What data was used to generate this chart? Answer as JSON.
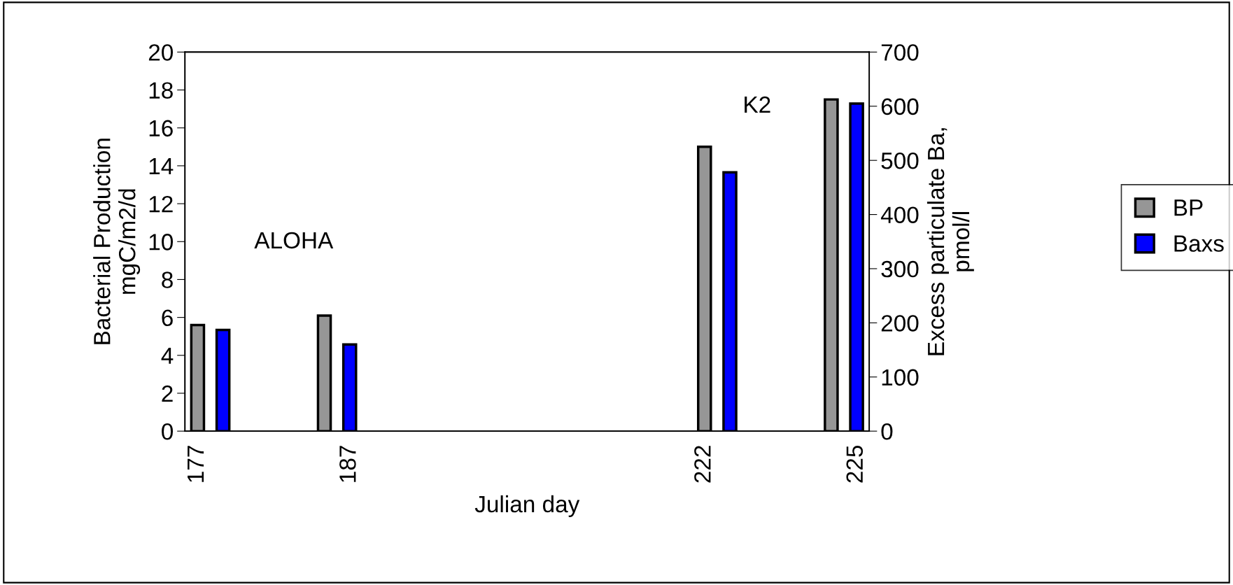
{
  "chart_data": {
    "type": "bar",
    "xlabel": "Julian day",
    "ylabel": "Bacterial Production\nmgC/m2/d",
    "y2label": "Excess particulate Ba,\npmol/l",
    "categories": [
      "177",
      null,
      null,
      null,
      null,
      null,
      "187",
      null,
      null,
      null,
      null,
      null,
      null,
      null,
      null,
      null,
      null,
      null,
      null,
      null,
      "222",
      null,
      null,
      null,
      null,
      null,
      "225"
    ],
    "series": [
      {
        "name": "BP",
        "color": "#969696",
        "values": [
          5.6,
          null,
          null,
          null,
          null,
          6.1,
          null,
          null,
          null,
          null,
          null,
          null,
          null,
          null,
          null,
          null,
          null,
          null,
          null,
          null,
          15.0,
          null,
          null,
          null,
          null,
          17.5,
          null
        ]
      },
      {
        "name": "Baxs",
        "color": "#0000ff",
        "axis": "y2",
        "values": [
          null,
          187,
          null,
          null,
          null,
          null,
          160,
          null,
          null,
          null,
          null,
          null,
          null,
          null,
          null,
          null,
          null,
          null,
          null,
          null,
          null,
          478,
          null,
          null,
          null,
          null,
          605
        ]
      }
    ],
    "ylim": [
      0,
      20
    ],
    "yticks": [
      0,
      2,
      4,
      6,
      8,
      10,
      12,
      14,
      16,
      18,
      20
    ],
    "y2lim": [
      0,
      700
    ],
    "y2ticks": [
      0,
      100,
      200,
      300,
      400,
      500,
      600,
      700
    ],
    "annotations": [
      "ALOHA",
      "K2"
    ],
    "grid": false,
    "legend": "right"
  }
}
